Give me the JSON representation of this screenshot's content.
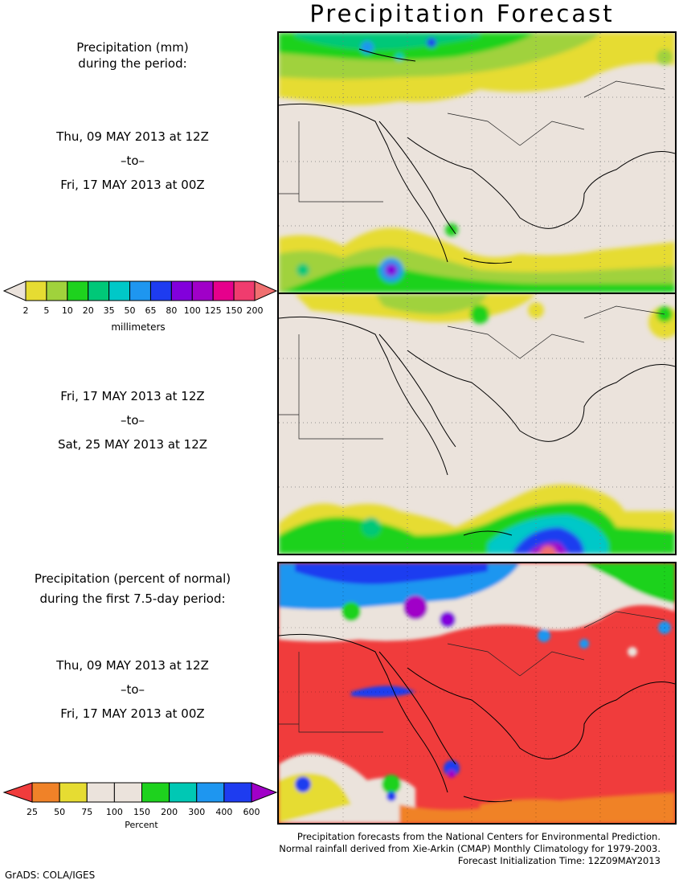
{
  "title": "Precipitation Forecast",
  "top_block": {
    "line1": "Precipitation (mm)",
    "line2": "during the period:"
  },
  "period1": {
    "start": "Thu, 09 MAY 2013 at 12Z",
    "sep": "–to–",
    "end": "Fri, 17 MAY 2013 at 00Z"
  },
  "period2": {
    "start": "Fri, 17 MAY 2013 at 12Z",
    "sep": "–to–",
    "end": "Sat, 25 MAY 2013 at 12Z"
  },
  "mm_colorbar": {
    "labels": [
      "2",
      "5",
      "10",
      "20",
      "35",
      "50",
      "65",
      "80",
      "100",
      "125",
      "150",
      "200"
    ],
    "colors": [
      "#e6dc32",
      "#a0d23c",
      "#1ed21e",
      "#00c878",
      "#00c8c8",
      "#1e96f0",
      "#1e3cf0",
      "#8200dc",
      "#a000c8",
      "#e6008c",
      "#f03c6e",
      "#f07070"
    ],
    "unit": "millimeters"
  },
  "pct_block": {
    "line1": "Precipitation (percent of normal)",
    "line2": "during the first 7.5-day period:"
  },
  "period3": {
    "start": "Thu, 09 MAY 2013 at 12Z",
    "sep": "–to–",
    "end": "Fri, 17 MAY 2013 at 00Z"
  },
  "pct_colorbar": {
    "labels": [
      "25",
      "50",
      "75",
      "100",
      "150",
      "200",
      "300",
      "400",
      "600"
    ],
    "colors": [
      "#f03c3c",
      "#f08228",
      "#e6dc32",
      "#ebe3dc",
      "#ebe3dc",
      "#1ed21e",
      "#00c8b4",
      "#1e96f0",
      "#1e3cf0",
      "#a000c8"
    ],
    "unit": "Percent"
  },
  "credits": {
    "line1": "Precipitation forecasts from the National Centers for Environmental Prediction.",
    "line2": "Normal rainfall derived from Xie-Arkin (CMAP) Monthly Climatology for 1979-2003.",
    "line3": "Forecast Initialization Time: 12Z09MAY2013"
  },
  "footer": "GrADS: COLA/IGES",
  "colors": {
    "land": "#ebe3dc",
    "dry_anomaly": "#f03c3c"
  }
}
